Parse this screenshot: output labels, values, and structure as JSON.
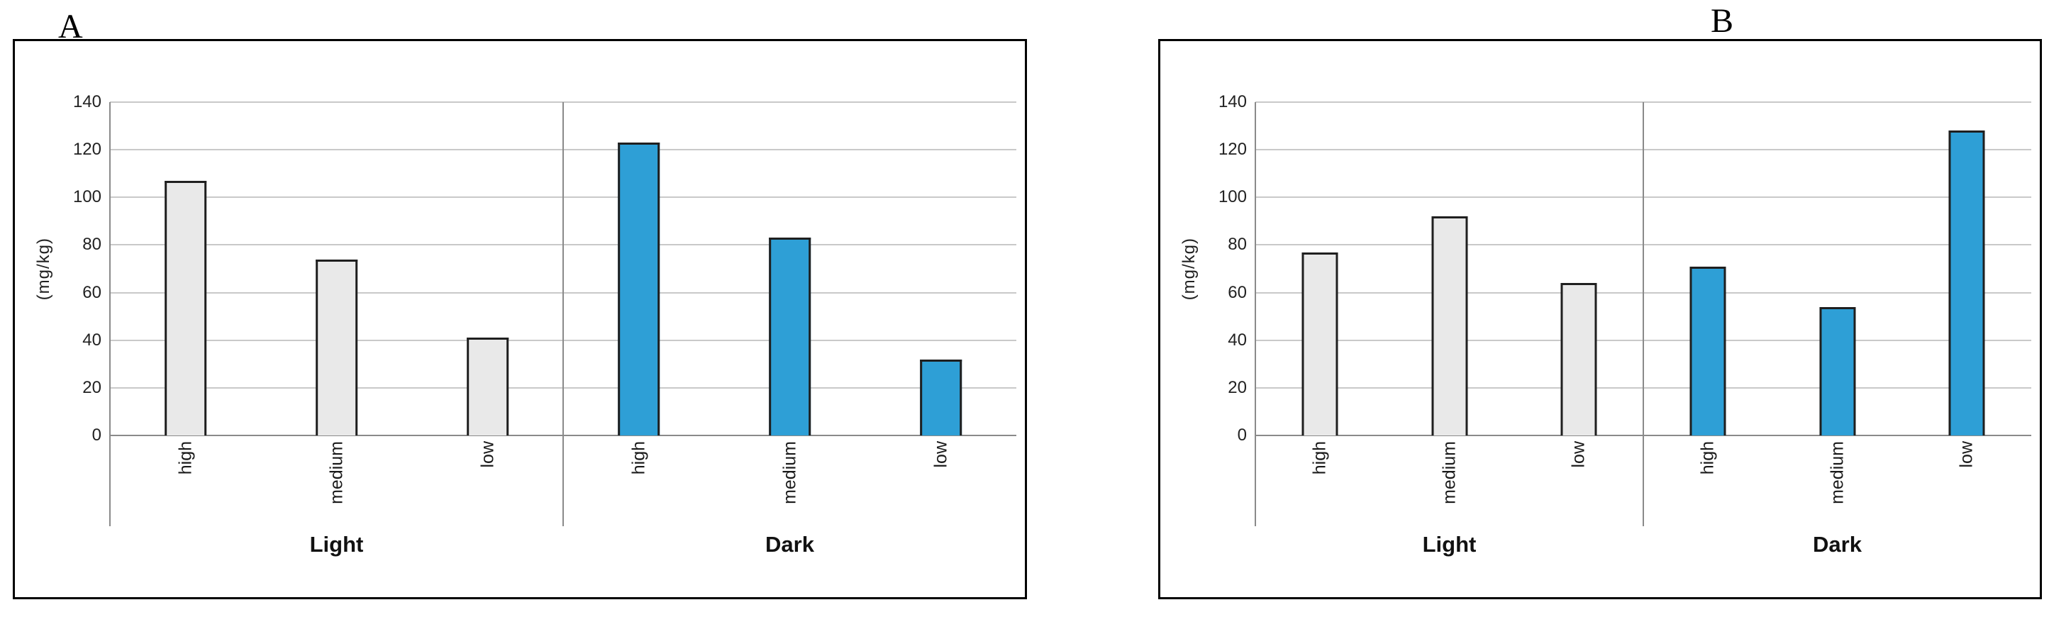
{
  "figure": {
    "panel_a_label": "A",
    "panel_b_label": "B"
  },
  "colors": {
    "light_bar_fill": "#e9e9e9",
    "dark_bar_fill": "#2e9fd6",
    "bar_border": "#1f1f1f",
    "gridline": "#c9c9c9",
    "axis_line": "#8a8a8a"
  },
  "chart_data": [
    {
      "id": "A",
      "type": "bar",
      "title": "",
      "xlabel": "",
      "ylabel": "(mg/kg)",
      "ylim": [
        0,
        140
      ],
      "ytick_step": 20,
      "grid": true,
      "legend": false,
      "groups": [
        {
          "label": "Light",
          "bar_color": "#e9e9e9",
          "categories": [
            "high",
            "medium",
            "low"
          ],
          "values": [
            107,
            74,
            41
          ]
        },
        {
          "label": "Dark",
          "bar_color": "#2e9fd6",
          "categories": [
            "high",
            "medium",
            "low"
          ],
          "values": [
            123,
            83,
            32
          ]
        }
      ]
    },
    {
      "id": "B",
      "type": "bar",
      "title": "",
      "xlabel": "",
      "ylabel": "(mg/kg)",
      "ylim": [
        0,
        140
      ],
      "ytick_step": 20,
      "grid": true,
      "legend": false,
      "groups": [
        {
          "label": "Light",
          "bar_color": "#e9e9e9",
          "categories": [
            "high",
            "medium",
            "low"
          ],
          "values": [
            77,
            92,
            64
          ]
        },
        {
          "label": "Dark",
          "bar_color": "#2e9fd6",
          "categories": [
            "high",
            "medium",
            "low"
          ],
          "values": [
            71,
            54,
            128
          ]
        }
      ]
    }
  ]
}
